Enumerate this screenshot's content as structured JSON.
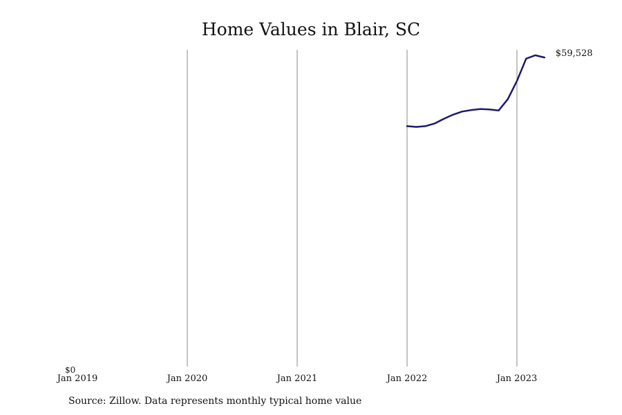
{
  "chart_data": {
    "type": "line",
    "title": "Home Values in Blair, SC",
    "xlabel": "",
    "ylabel": "",
    "x_tick_labels": [
      "Jan 2019",
      "Jan 2020",
      "Jan 2021",
      "Jan 2022",
      "Jan 2023"
    ],
    "y_tick_labels": [
      "$0"
    ],
    "ylim": [
      0,
      61000
    ],
    "grid": "vertical",
    "series": [
      {
        "color": "#1b1a6b",
        "x": [
          "2022-01",
          "2022-02",
          "2022-03",
          "2022-04",
          "2022-05",
          "2022-06",
          "2022-07",
          "2022-08",
          "2022-09",
          "2022-10",
          "2022-11",
          "2022-12",
          "2023-01",
          "2023-02",
          "2023-03",
          "2023-04"
        ],
        "y": [
          46300,
          46150,
          46300,
          46800,
          47700,
          48500,
          49100,
          49400,
          49600,
          49500,
          49300,
          51500,
          55000,
          59300,
          59950,
          59528
        ]
      }
    ],
    "end_label": "$59,528"
  },
  "footer": {
    "source": "Source: Zillow. Data represents monthly typical home value"
  }
}
